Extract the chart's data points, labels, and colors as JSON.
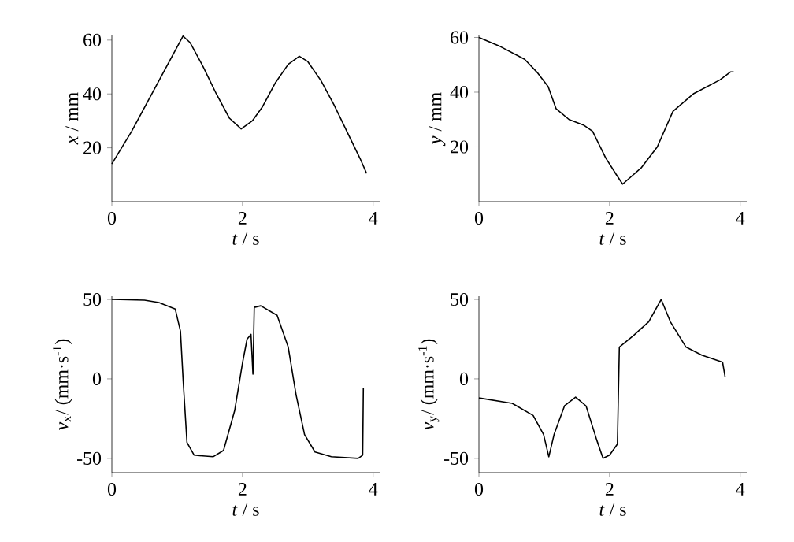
{
  "chart_data": [
    {
      "type": "line",
      "xlabel": "*t* / s",
      "ylabel": "*x* / mm",
      "color": "#000000",
      "grid": false,
      "xlim": [
        0,
        4.1
      ],
      "ylim": [
        0,
        62
      ],
      "xticks": [
        0,
        2,
        4
      ],
      "yticks": [
        20,
        40,
        60
      ],
      "x": [
        0,
        0.1,
        0.3,
        0.5,
        0.7,
        0.9,
        1.09,
        1.2,
        1.4,
        1.6,
        1.8,
        1.98,
        2.15,
        2.3,
        2.5,
        2.7,
        2.87,
        3.0,
        3.2,
        3.4,
        3.6,
        3.8,
        3.9
      ],
      "values": [
        14,
        18,
        26,
        35,
        44,
        53,
        61.5,
        59,
        50,
        40,
        31,
        27,
        30,
        35,
        44,
        51,
        54,
        52,
        45,
        36,
        26,
        16,
        10.5
      ]
    },
    {
      "type": "line",
      "xlabel": "*t* / s",
      "ylabel": "*y* / mm",
      "color": "#000000",
      "grid": false,
      "xlim": [
        0,
        4.1
      ],
      "ylim": [
        0,
        61
      ],
      "xticks": [
        0,
        2,
        4
      ],
      "yticks": [
        20,
        40,
        60
      ],
      "x": [
        0,
        0.3,
        0.7,
        0.9,
        1.06,
        1.18,
        1.38,
        1.6,
        1.74,
        1.94,
        2.1,
        2.2,
        2.49,
        2.73,
        2.97,
        3.29,
        3.69,
        3.85,
        3.9
      ],
      "values": [
        60,
        57,
        52,
        47,
        42,
        34,
        30,
        28,
        25.7,
        16,
        10,
        6.4,
        12.5,
        20,
        33,
        39.5,
        44.5,
        47.4,
        47.4
      ]
    },
    {
      "type": "line",
      "xlabel": "*t* / s",
      "ylabel": "*v*$_{x}$/ (mm·s$^{-1}$)",
      "color": "#000000",
      "grid": false,
      "xlim": [
        0,
        4.1
      ],
      "ylim": [
        -59,
        52
      ],
      "xticks": [
        0,
        2,
        4
      ],
      "yticks": [
        -50,
        0,
        50
      ],
      "x": [
        0,
        0.5,
        0.72,
        0.97,
        1.05,
        1.09,
        1.15,
        1.26,
        1.55,
        1.71,
        1.88,
        2.0,
        2.07,
        2.13,
        2.16,
        2.18,
        2.28,
        2.53,
        2.7,
        2.82,
        2.95,
        3.11,
        3.36,
        3.77,
        3.84,
        3.85
      ],
      "values": [
        50,
        49.5,
        48,
        44,
        30,
        0,
        -40,
        -48,
        -49,
        -45,
        -20,
        10,
        25,
        28,
        3,
        45,
        46,
        40,
        20,
        -10,
        -35,
        -46,
        -49,
        -50,
        -48,
        -6
      ]
    },
    {
      "type": "line",
      "xlabel": "*t* / s",
      "ylabel": "*v*$_{y}$/ (mm·s$^{-1}$)",
      "color": "#000000",
      "grid": false,
      "xlim": [
        0,
        4.1
      ],
      "ylim": [
        -59,
        52
      ],
      "xticks": [
        0,
        2,
        4
      ],
      "yticks": [
        -50,
        0,
        50
      ],
      "x": [
        0,
        0.51,
        0.83,
        0.99,
        1.07,
        1.15,
        1.31,
        1.48,
        1.64,
        1.8,
        1.9,
        2.0,
        2.12,
        2.15,
        2.36,
        2.6,
        2.79,
        2.93,
        3.17,
        3.41,
        3.73,
        3.77
      ],
      "values": [
        -12,
        -15.4,
        -23,
        -35,
        -49,
        -35,
        -17,
        -11.5,
        -17,
        -38,
        -50,
        -48,
        -41,
        20,
        27,
        36,
        50,
        36,
        20,
        15,
        10.5,
        1
      ]
    }
  ]
}
